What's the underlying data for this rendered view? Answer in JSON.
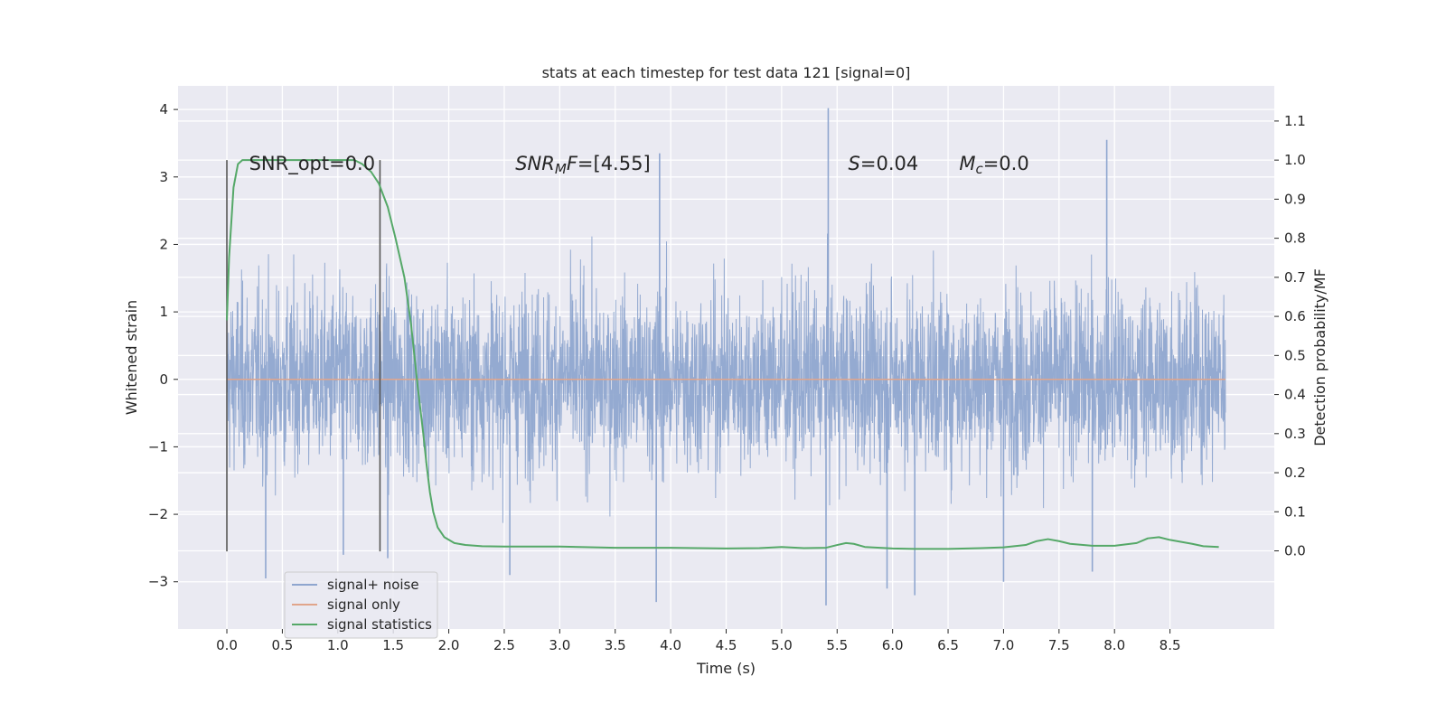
{
  "chart_data": {
    "type": "line",
    "title": "stats at each timestep for test data 121 [signal=0]",
    "xlabel": "Time (s)",
    "ylabel": "Whitened strain",
    "ylabel_right": "Detection probability/MF",
    "xlim": [
      -0.44,
      9.44
    ],
    "ylim": [
      -3.7,
      4.35
    ],
    "ylim_right": [
      -0.2,
      1.19
    ],
    "x_ticks": [
      "0.0",
      "0.5",
      "1.0",
      "1.5",
      "2.0",
      "2.5",
      "3.0",
      "3.5",
      "4.0",
      "4.5",
      "5.0",
      "5.5",
      "6.0",
      "6.5",
      "7.0",
      "7.5",
      "8.0",
      "8.5"
    ],
    "y_ticks": [
      "−3",
      "−2",
      "−1",
      "0",
      "1",
      "2",
      "3",
      "4"
    ],
    "y_ticks_right": [
      "0.0",
      "0.1",
      "0.2",
      "0.3",
      "0.4",
      "0.5",
      "0.6",
      "0.7",
      "0.8",
      "0.9",
      "1.0",
      "1.1"
    ],
    "grid": true,
    "legend_position": "lower-left",
    "series": [
      {
        "name": "signal+ noise",
        "axis": "left",
        "color": "#8fa6cf",
        "x_range": [
          0.0,
          9.0
        ],
        "envelope_core": [
          -1.4,
          1.5
        ],
        "peaks": [
          {
            "x": 0.35,
            "y": -2.95
          },
          {
            "x": 1.05,
            "y": -2.6
          },
          {
            "x": 1.45,
            "y": -2.65
          },
          {
            "x": 2.55,
            "y": -2.9
          },
          {
            "x": 3.9,
            "y": 3.35
          },
          {
            "x": 3.87,
            "y": -3.3
          },
          {
            "x": 5.42,
            "y": 4.02
          },
          {
            "x": 5.4,
            "y": -3.35
          },
          {
            "x": 5.95,
            "y": -3.1
          },
          {
            "x": 6.2,
            "y": -3.2
          },
          {
            "x": 7.0,
            "y": -3.0
          },
          {
            "x": 7.8,
            "y": -2.85
          },
          {
            "x": 7.93,
            "y": 3.55
          }
        ]
      },
      {
        "name": "signal only",
        "axis": "left",
        "color": "#e1a58b",
        "x": [
          0.0,
          9.0
        ],
        "y": [
          0.0,
          0.0
        ]
      },
      {
        "name": "signal statistics",
        "axis": "right",
        "color": "#55a868",
        "x": [
          0.0,
          0.02,
          0.06,
          0.1,
          0.14,
          0.2,
          0.3,
          0.5,
          0.7,
          0.9,
          1.05,
          1.15,
          1.22,
          1.3,
          1.37,
          1.45,
          1.52,
          1.6,
          1.66,
          1.72,
          1.77,
          1.8,
          1.83,
          1.86,
          1.9,
          1.96,
          2.05,
          2.15,
          2.3,
          2.5,
          3.0,
          3.5,
          4.0,
          4.5,
          4.8,
          5.0,
          5.2,
          5.4,
          5.5,
          5.58,
          5.65,
          5.75,
          6.0,
          6.2,
          6.5,
          6.8,
          7.0,
          7.2,
          7.3,
          7.4,
          7.5,
          7.6,
          7.8,
          8.0,
          8.2,
          8.3,
          8.4,
          8.5,
          8.7,
          8.8,
          8.94
        ],
        "y": [
          0.59,
          0.75,
          0.93,
          0.99,
          1.0,
          1.0,
          1.0,
          1.0,
          1.0,
          1.0,
          1.0,
          1.0,
          0.99,
          0.97,
          0.94,
          0.88,
          0.8,
          0.7,
          0.58,
          0.42,
          0.3,
          0.22,
          0.15,
          0.1,
          0.06,
          0.035,
          0.02,
          0.015,
          0.012,
          0.011,
          0.011,
          0.008,
          0.008,
          0.006,
          0.007,
          0.01,
          0.007,
          0.008,
          0.015,
          0.02,
          0.018,
          0.01,
          0.006,
          0.005,
          0.005,
          0.007,
          0.009,
          0.015,
          0.025,
          0.03,
          0.025,
          0.018,
          0.013,
          0.013,
          0.02,
          0.032,
          0.035,
          0.028,
          0.018,
          0.012,
          0.01
        ]
      }
    ],
    "vertical_lines": [
      {
        "x": 0.0,
        "ymin": -2.55,
        "ymax": 3.25,
        "color": "#555555"
      },
      {
        "x": 1.38,
        "ymin": -2.55,
        "ymax": 3.25,
        "color": "#555555"
      }
    ],
    "annotations": [
      {
        "x": 0.2,
        "y": 3.2,
        "parts": [
          {
            "t": "SNR_opt=0.0"
          }
        ]
      },
      {
        "x": 2.6,
        "y": 3.2,
        "parts": [
          {
            "t": "SNR",
            "i": true
          },
          {
            "t": "M",
            "i": true,
            "sub": true
          },
          {
            "t": "F",
            "i": true
          },
          {
            "t": "=[4.55]"
          }
        ]
      },
      {
        "x": 5.6,
        "y": 3.2,
        "parts": [
          {
            "t": "S",
            "i": true
          },
          {
            "t": "=0.04"
          }
        ]
      },
      {
        "x": 6.6,
        "y": 3.2,
        "parts": [
          {
            "t": "M",
            "i": true
          },
          {
            "t": "c",
            "i": true,
            "sub": true
          },
          {
            "t": "=0.0"
          }
        ]
      }
    ]
  }
}
